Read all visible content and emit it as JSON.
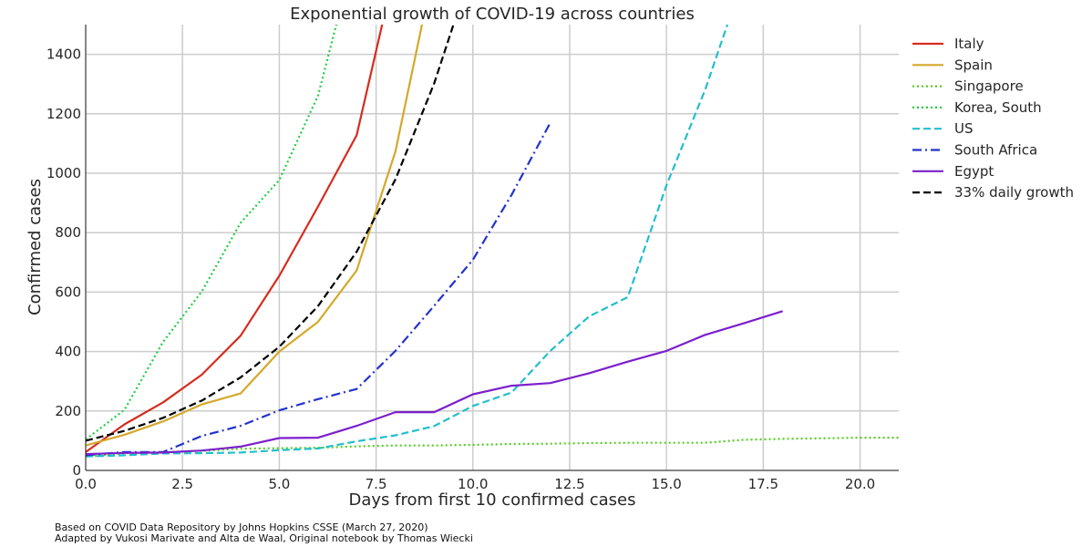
{
  "chart_data": {
    "type": "line",
    "title": "Exponential growth of COVID-19 across countries",
    "xlabel": "Days from first 10 confirmed cases",
    "ylabel": "Confirmed cases",
    "xlim": [
      0,
      21
    ],
    "ylim": [
      0,
      1500
    ],
    "xticks": [
      "0.0",
      "2.5",
      "5.0",
      "7.5",
      "10.0",
      "12.5",
      "15.0",
      "17.5",
      "20.0"
    ],
    "yticks": [
      "0",
      "200",
      "400",
      "600",
      "800",
      "1000",
      "1200",
      "1400"
    ],
    "grid": true,
    "legend_position": "outside-right",
    "series": [
      {
        "name": "Italy",
        "color": "#d62c1f",
        "style": "solid",
        "x": [
          0,
          1,
          2,
          3,
          4,
          5,
          6,
          7,
          8
        ],
        "y": [
          62,
          155,
          229,
          322,
          453,
          655,
          888,
          1128,
          1694
        ]
      },
      {
        "name": "Spain",
        "color": "#d4a82a",
        "style": "solid",
        "x": [
          0,
          1,
          2,
          3,
          4,
          5,
          6,
          7,
          8,
          9
        ],
        "y": [
          84,
          120,
          165,
          222,
          259,
          400,
          500,
          673,
          1073,
          1695
        ]
      },
      {
        "name": "Singapore",
        "color": "#55cc22",
        "style": "dotted",
        "x": [
          0,
          1,
          2,
          3,
          4,
          5,
          6,
          7,
          8,
          9,
          10,
          11,
          12,
          13,
          14,
          15,
          16,
          17,
          18,
          19,
          20,
          21
        ],
        "y": [
          47,
          58,
          61,
          66,
          73,
          75,
          76,
          81,
          84,
          84,
          86,
          89,
          90,
          92,
          93,
          93,
          93,
          103,
          106,
          108,
          110,
          110
        ]
      },
      {
        "name": "Korea, South",
        "color": "#22cc44",
        "style": "dotted",
        "x": [
          0,
          1,
          2,
          3,
          4,
          5,
          6,
          7
        ],
        "y": [
          104,
          204,
          433,
          602,
          833,
          977,
          1261,
          1766
        ]
      },
      {
        "name": "US",
        "color": "#22bfcc",
        "style": "dashed",
        "x": [
          0,
          1,
          2,
          3,
          4,
          5,
          6,
          7,
          8,
          9,
          10,
          11,
          12,
          13,
          14,
          15,
          16,
          17
        ],
        "y": [
          47,
          51,
          57,
          58,
          60,
          68,
          74,
          98,
          118,
          149,
          217,
          262,
          402,
          518,
          583,
          959,
          1281,
          1663
        ]
      },
      {
        "name": "South Africa",
        "color": "#2233cc",
        "style": "dashdot",
        "x": [
          0,
          1,
          2,
          3,
          4,
          5,
          6,
          7,
          8,
          9,
          10,
          11,
          12
        ],
        "y": [
          51,
          62,
          62,
          116,
          150,
          202,
          240,
          274,
          402,
          554,
          709,
          927,
          1170
        ]
      },
      {
        "name": "Egypt",
        "color": "#7c1fcc",
        "style": "solid",
        "x": [
          0,
          1,
          2,
          3,
          4,
          5,
          6,
          7,
          8,
          9,
          10,
          11,
          12,
          13,
          14,
          15,
          16,
          17,
          18
        ],
        "y": [
          55,
          59,
          60,
          67,
          80,
          109,
          110,
          150,
          196,
          196,
          256,
          285,
          294,
          327,
          366,
          402,
          456,
          495,
          536
        ]
      },
      {
        "name": "33% daily growth",
        "color": "#000000",
        "style": "dashed",
        "x": [
          0,
          1,
          2,
          3,
          4,
          5,
          6,
          7,
          8,
          9,
          9.5
        ],
        "y": [
          100,
          133,
          177,
          235,
          313,
          416,
          553,
          736,
          979,
          1302,
          1500
        ]
      }
    ]
  },
  "credits": {
    "line1": "Based on COVID Data Repository by Johns Hopkins CSSE (March 27, 2020)",
    "line2": "Adapted by Vukosi Marivate and Alta de Waal, Original notebook by Thomas Wiecki"
  }
}
